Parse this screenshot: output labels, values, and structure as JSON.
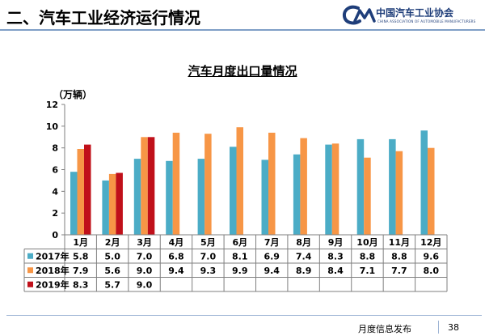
{
  "header": {
    "title": "二、汽车工业经济运行情况",
    "logo_name": "中国汽车工业协会",
    "logo_sub": "CHINA ASSOCIATION OF AUTOMOBILE MANUFACTURERS"
  },
  "footer": {
    "text": "月度信息发布",
    "page_number": "38"
  },
  "chart_data": {
    "type": "bar",
    "title": "汽车月度出口量情况",
    "unit_label": "（万辆）",
    "categories": [
      "1月",
      "2月",
      "3月",
      "4月",
      "5月",
      "6月",
      "7月",
      "8月",
      "9月",
      "10月",
      "11月",
      "12月"
    ],
    "series": [
      {
        "name": "2017年",
        "color": "#4bacc6",
        "values": [
          5.8,
          5.0,
          7.0,
          6.8,
          7.0,
          8.1,
          6.9,
          7.4,
          8.3,
          8.8,
          8.8,
          9.6
        ]
      },
      {
        "name": "2018年",
        "color": "#f79646",
        "values": [
          7.9,
          5.6,
          9.0,
          9.4,
          9.3,
          9.9,
          9.4,
          8.9,
          8.4,
          7.1,
          7.7,
          8.0
        ]
      },
      {
        "name": "2019年",
        "color": "#c0101a",
        "values": [
          8.3,
          5.7,
          9.0,
          null,
          null,
          null,
          null,
          null,
          null,
          null,
          null,
          null
        ]
      }
    ],
    "ylim": [
      0,
      12
    ],
    "yticks": [
      0,
      2,
      4,
      6,
      8,
      10,
      12
    ],
    "grid": false,
    "legend": "data-table",
    "xlabel": "",
    "ylabel": ""
  }
}
